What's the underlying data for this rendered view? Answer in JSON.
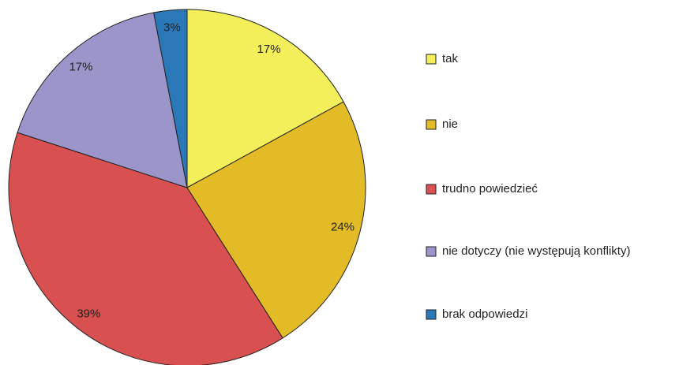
{
  "chart_data": {
    "type": "pie",
    "categories": [
      "tak",
      "nie",
      "trudno powiedzieć",
      "nie dotyczy (nie występują konflikty)",
      "brak odpowiedzi"
    ],
    "values": [
      17,
      24,
      39,
      17,
      3
    ],
    "value_labels": [
      "17%",
      "24%",
      "39%",
      "17%",
      "3%"
    ],
    "colors": [
      "#f2ef5a",
      "#e2bb27",
      "#d95050",
      "#9b95c9",
      "#2a78b8"
    ],
    "legend": "right"
  }
}
